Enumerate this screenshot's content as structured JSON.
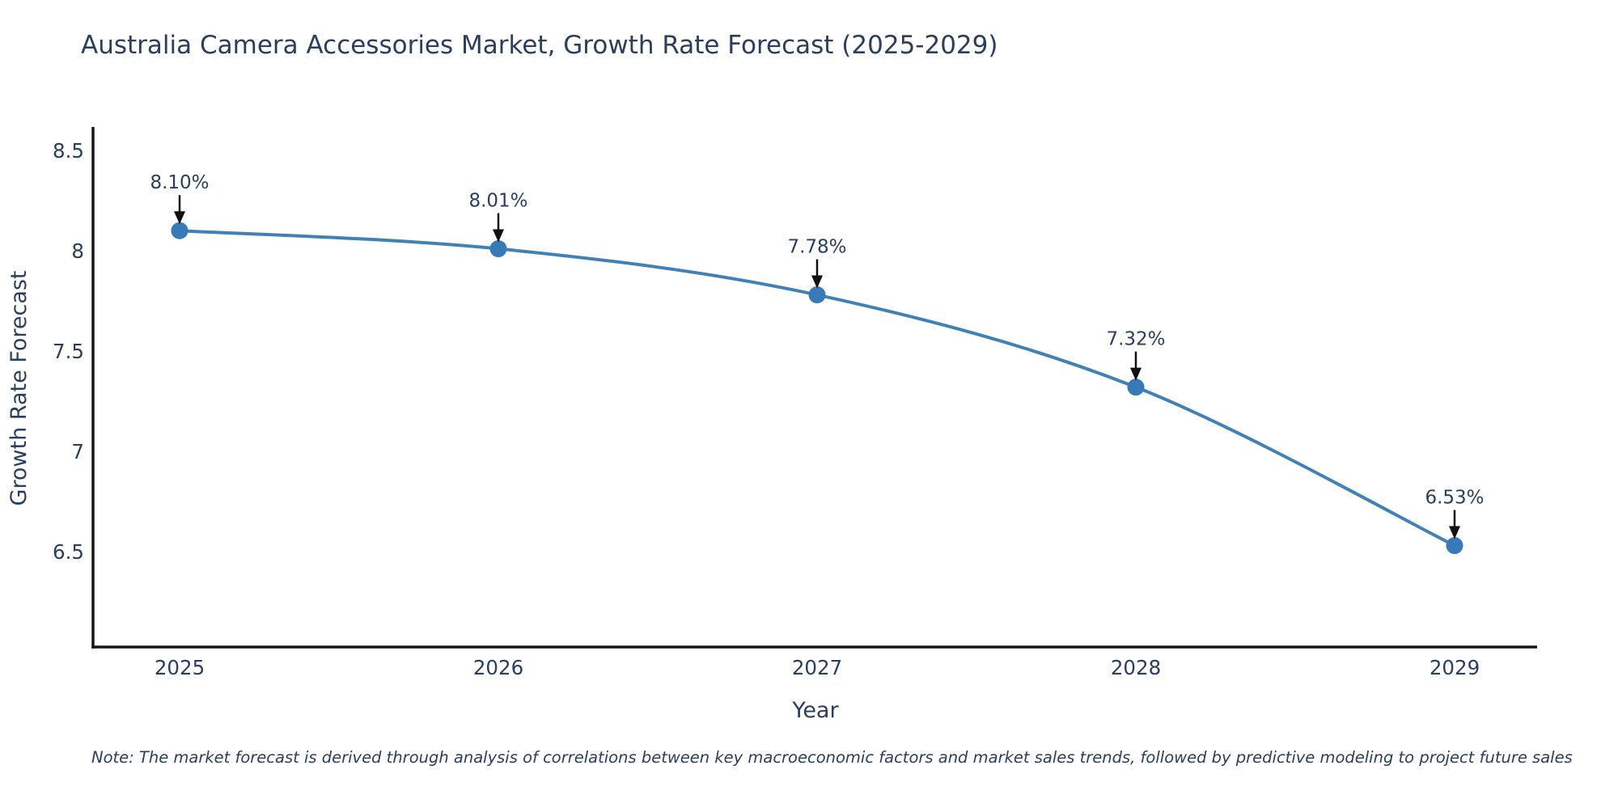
{
  "note": "Note: The market forecast is derived through analysis of correlations between key macroeconomic factors and market sales trends, followed by predictive modeling to project future sales",
  "chart_data": {
    "type": "line",
    "title": "Australia Camera Accessories Market, Growth Rate Forecast (2025-2029)",
    "xlabel": "Year",
    "ylabel": "Growth Rate Forecast",
    "categories": [
      "2025",
      "2026",
      "2027",
      "2028",
      "2029"
    ],
    "series": [
      {
        "name": "Growth Rate Forecast",
        "values": [
          8.1,
          8.01,
          7.78,
          7.32,
          6.53
        ]
      }
    ],
    "point_labels": [
      "8.10%",
      "8.01%",
      "7.78%",
      "7.32%",
      "6.53%"
    ],
    "y_ticks": [
      {
        "value": 8.5,
        "label": "8.5"
      },
      {
        "value": 8.0,
        "label": "8"
      },
      {
        "value": 7.5,
        "label": "7.5"
      },
      {
        "value": 7.0,
        "label": "7"
      },
      {
        "value": 6.5,
        "label": "6.5"
      }
    ],
    "ylim": [
      6.02,
      8.6
    ],
    "grid": false,
    "legend_position": "none",
    "marker_style": "circle",
    "annotation_arrows": true,
    "colors": {
      "line": "#4181b8",
      "marker": "#3879b8",
      "axis": "#161616",
      "arrow": "#111111",
      "text": "#2a3f5f",
      "background": "#ffffff"
    }
  }
}
